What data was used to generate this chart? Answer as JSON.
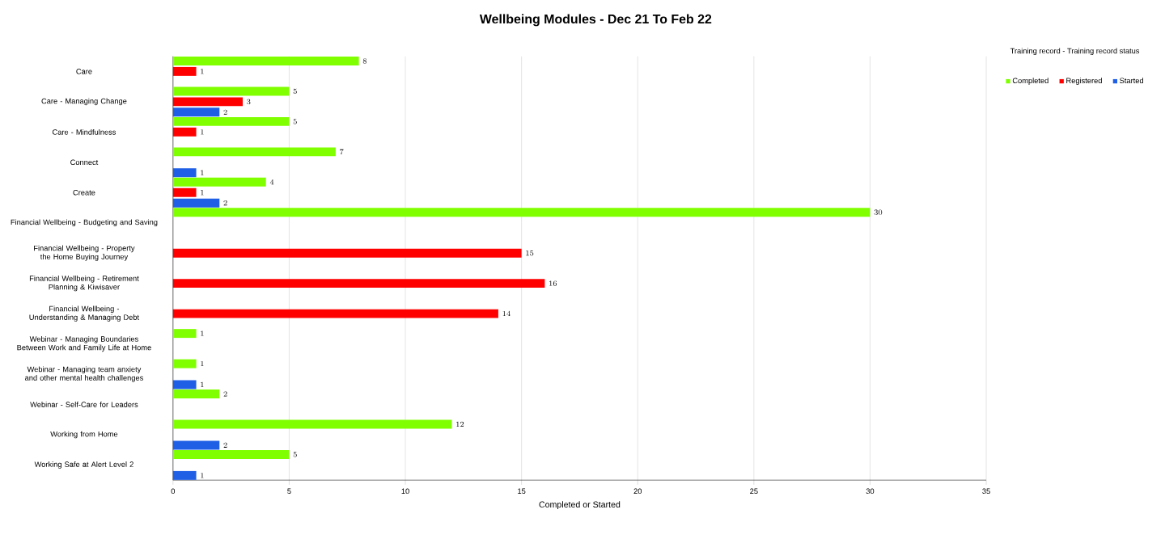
{
  "chart_data": {
    "type": "bar",
    "orientation": "horizontal",
    "title": "Wellbeing Modules - Dec 21 To Feb 22",
    "xlabel": "Completed or Started",
    "legend_title": "Training record - Training record status",
    "categories": [
      "Care",
      "Care - Managing Change",
      "Care - Mindfulness",
      "Connect",
      "Create",
      "Financial Wellbeing - Budgeting and Saving",
      "Financial Wellbeing - Property the Home Buying Journey",
      "Financial Wellbeing - Retirement Planning & Kiwisaver",
      "Financial Wellbeing - Understanding & Managing Debt",
      "Webinar - Managing Boundaries Between Work and Family Life at Home",
      "Webinar - Managing team anxiety and other mental health challenges",
      "Webinar - Self-Care for Leaders",
      "Working from Home",
      "Working Safe at Alert Level 2"
    ],
    "series": [
      {
        "name": "Completed",
        "color": "#80ff00",
        "values": [
          8,
          5,
          5,
          7,
          4,
          30,
          null,
          null,
          null,
          1,
          1,
          2,
          12,
          5
        ]
      },
      {
        "name": "Registered",
        "color": "#ff0000",
        "values": [
          1,
          3,
          1,
          null,
          1,
          null,
          15,
          16,
          14,
          null,
          null,
          null,
          null,
          null
        ]
      },
      {
        "name": "Started",
        "color": "#1f5fe6",
        "values": [
          null,
          2,
          null,
          1,
          2,
          null,
          null,
          null,
          null,
          null,
          1,
          null,
          2,
          1
        ]
      }
    ],
    "xlim": [
      0,
      35
    ],
    "xticks": [
      0,
      5,
      10,
      15,
      20,
      25,
      30,
      35
    ],
    "grid": "x",
    "legend": "top right",
    "data_labels": true
  }
}
